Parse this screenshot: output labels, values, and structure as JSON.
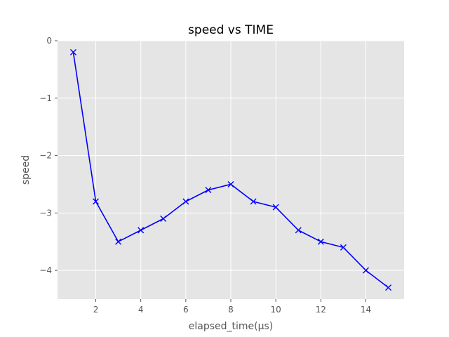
{
  "chart_data": {
    "type": "line",
    "title": "speed vs TIME",
    "xlabel": "elapsed_time(µs)",
    "ylabel": "speed",
    "xlim": [
      0.3,
      15.7
    ],
    "ylim": [
      -4.5,
      0
    ],
    "xticks": [
      2,
      4,
      6,
      8,
      10,
      12,
      14
    ],
    "yticks": [
      0,
      -1,
      -2,
      -3,
      -4
    ],
    "ytick_labels": [
      "0",
      "−1",
      "−2",
      "−3",
      "−4"
    ],
    "grid": true,
    "style": {
      "plot_background": "#e5e5e5",
      "grid_color": "#ffffff",
      "line_color": "#0000ff",
      "marker": "x"
    },
    "series": [
      {
        "x": [
          1,
          2,
          3,
          4,
          5,
          6,
          7,
          8,
          9,
          10,
          11,
          12,
          13,
          14,
          15
        ],
        "y": [
          -0.2,
          -2.8,
          -3.5,
          -3.3,
          -3.1,
          -2.8,
          -2.6,
          -2.5,
          -2.8,
          -2.9,
          -3.3,
          -3.5,
          -3.6,
          -4.0,
          -4.3
        ]
      }
    ]
  }
}
